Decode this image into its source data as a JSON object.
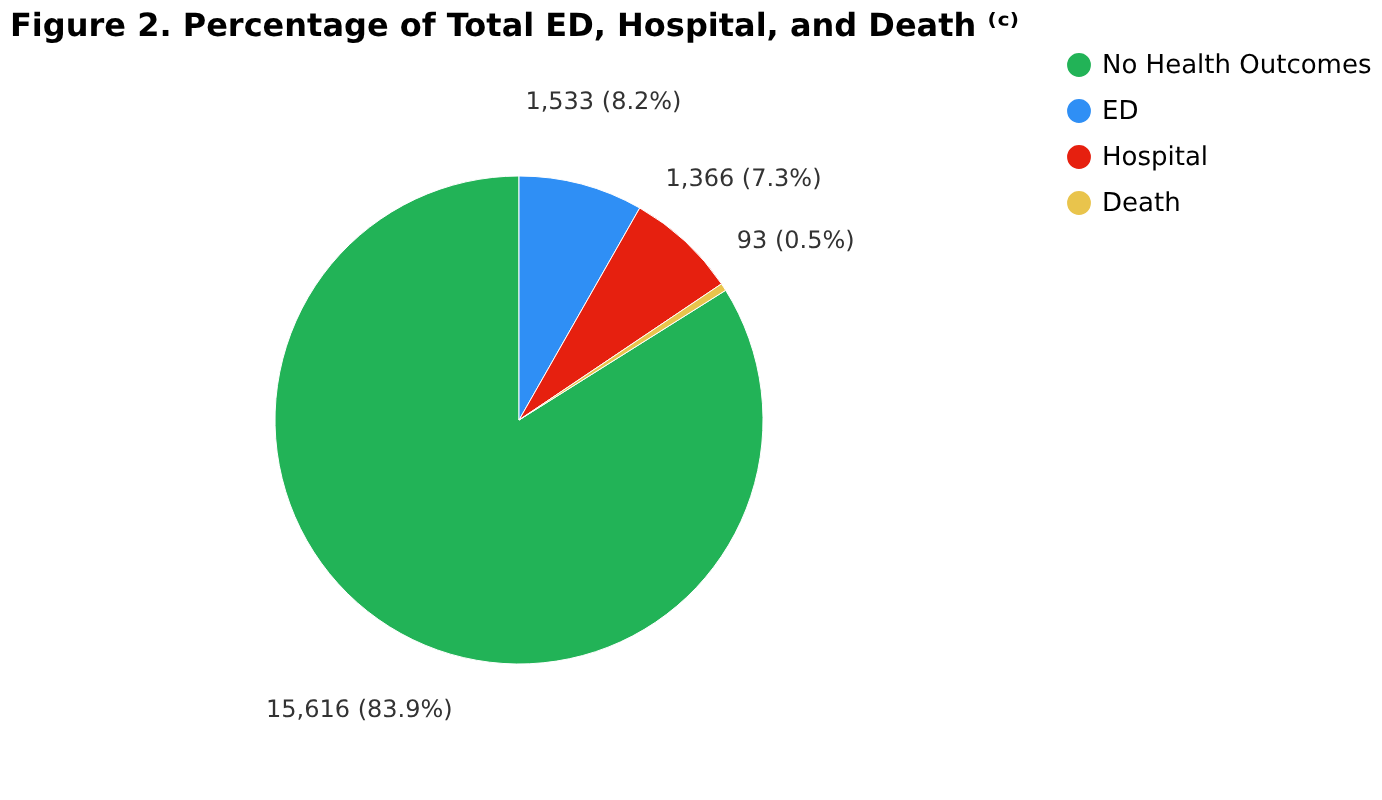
{
  "chart_data": {
    "type": "pie",
    "title": "Figure 2. Percentage of Total ED, Hospital, and Death ⁽ᶜ⁾",
    "categories": [
      "No Health Outcomes",
      "ED",
      "Hospital",
      "Death"
    ],
    "values": [
      15616,
      1533,
      1366,
      93
    ],
    "colors": [
      "#22b357",
      "#2f8ff5",
      "#e6200f",
      "#e9c44c"
    ],
    "value_labels": [
      "15,616 (83.9%)",
      "1,533 (8.2%)",
      "1,366 (7.3%)",
      "93 (0.5%)"
    ],
    "legend": "right"
  }
}
